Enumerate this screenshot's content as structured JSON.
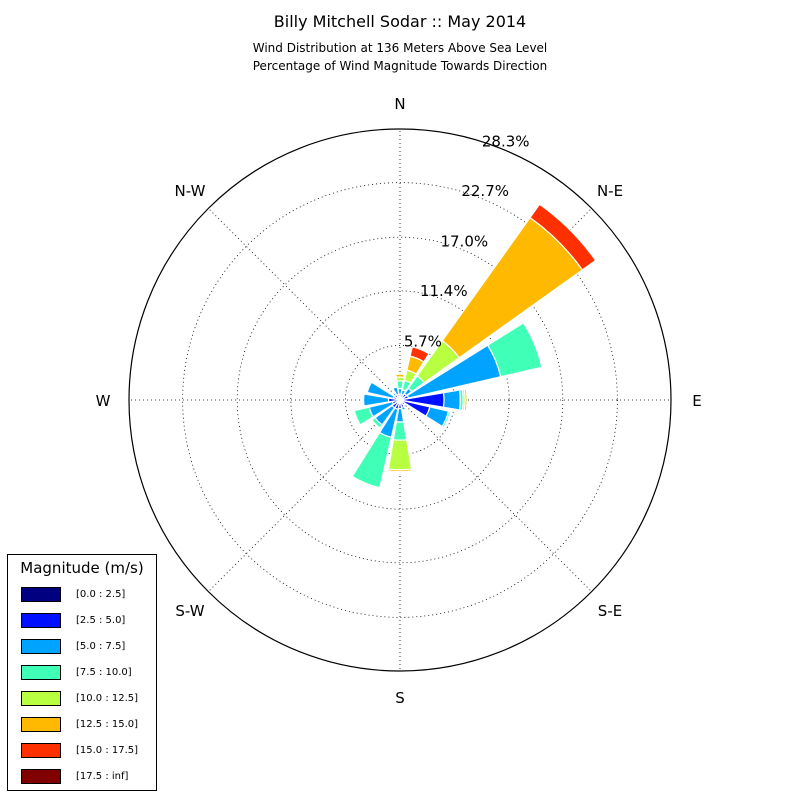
{
  "chart_data": {
    "type": "windrose",
    "title": "Billy Mitchell Sodar :: May 2014",
    "subtitle_line1": "Wind Distribution at 136 Meters Above Sea Level",
    "subtitle_line2": "Percentage of Wind Magnitude Towards Direction",
    "direction_labels": [
      "N",
      "N-E",
      "E",
      "S-E",
      "S",
      "S-W",
      "W",
      "N-W"
    ],
    "radial_ticks": [
      5.7,
      11.4,
      17.0,
      22.7,
      28.3
    ],
    "radial_tick_labels": [
      "5.7%",
      "11.4%",
      "17.0%",
      "22.7%",
      "28.3%"
    ],
    "rmax": 28.3,
    "legend_title": "Magnitude (m/s)",
    "bins": [
      "[0.0 : 2.5]",
      "[2.5 : 5.0]",
      "[5.0 : 7.5]",
      "[7.5 : 10.0]",
      "[10.0 : 12.5]",
      "[12.5 : 15.0]",
      "[15.0 : 17.5]",
      "[17.5 : inf]"
    ],
    "bin_colors": [
      "#000080",
      "#0010ff",
      "#00a4ff",
      "#40ffb7",
      "#b7ff40",
      "#ffb900",
      "#ff3000",
      "#800000"
    ],
    "sectors": [
      {
        "direction_deg": 0,
        "cumulative": [
          0.2,
          0.6,
          1.2,
          2.0,
          2.4,
          2.7,
          2.7,
          2.7
        ]
      },
      {
        "direction_deg": 22.5,
        "cumulative": [
          0.2,
          0.6,
          1.1,
          2.1,
          3.2,
          4.7,
          5.7,
          5.7
        ]
      },
      {
        "direction_deg": 45,
        "cumulative": [
          0.2,
          0.8,
          1.5,
          3.1,
          7.6,
          23.4,
          25.1,
          25.1
        ]
      },
      {
        "direction_deg": 67.5,
        "cumulative": [
          0.3,
          0.9,
          10.8,
          15.2,
          15.2,
          15.2,
          15.2,
          15.2
        ]
      },
      {
        "direction_deg": 90,
        "cumulative": [
          0.3,
          4.6,
          6.3,
          6.6,
          6.8,
          7.0,
          7.0,
          7.0
        ]
      },
      {
        "direction_deg": 112.5,
        "cumulative": [
          0.3,
          3.2,
          5.2,
          5.4,
          5.4,
          5.4,
          5.4,
          5.4
        ]
      },
      {
        "direction_deg": 135,
        "cumulative": [
          0.2,
          0.3,
          0.3,
          0.3,
          0.3,
          0.3,
          0.3,
          0.3
        ]
      },
      {
        "direction_deg": 157.5,
        "cumulative": [
          0.2,
          0.8,
          1.1,
          1.1,
          1.1,
          1.1,
          1.1,
          1.1
        ]
      },
      {
        "direction_deg": 180,
        "cumulative": [
          0.2,
          0.9,
          2.3,
          4.2,
          7.3,
          7.5,
          7.6,
          7.6
        ]
      },
      {
        "direction_deg": 202.5,
        "cumulative": [
          0.2,
          1.0,
          4.0,
          9.4,
          9.4,
          9.4,
          9.4,
          9.4
        ]
      },
      {
        "direction_deg": 225,
        "cumulative": [
          0.2,
          1.0,
          3.2,
          3.6,
          3.6,
          3.6,
          3.6,
          3.6
        ]
      },
      {
        "direction_deg": 247.5,
        "cumulative": [
          0.2,
          0.8,
          3.3,
          4.9,
          4.9,
          4.9,
          4.9,
          4.9
        ]
      },
      {
        "direction_deg": 270,
        "cumulative": [
          0.2,
          1.2,
          3.8,
          3.8,
          3.8,
          3.8,
          3.8,
          3.8
        ]
      },
      {
        "direction_deg": 292.5,
        "cumulative": [
          0.2,
          0.7,
          3.5,
          3.5,
          3.5,
          3.5,
          3.5,
          3.5
        ]
      },
      {
        "direction_deg": 315,
        "cumulative": [
          0.2,
          0.7,
          0.9,
          0.9,
          0.9,
          0.9,
          0.9,
          0.9
        ]
      },
      {
        "direction_deg": 337.5,
        "cumulative": [
          0.2,
          0.6,
          1.4,
          1.4,
          1.4,
          1.4,
          1.4,
          1.4
        ]
      }
    ]
  }
}
